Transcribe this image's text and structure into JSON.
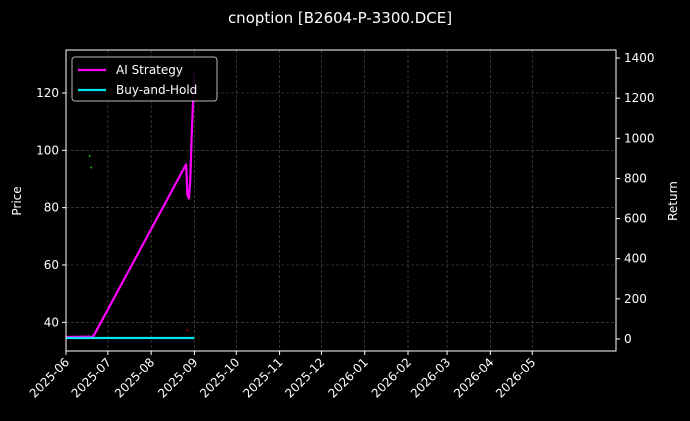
{
  "chart_data": {
    "type": "line",
    "title": "cnoption [B2604-P-3300.DCE]",
    "left_axis": {
      "label": "Price",
      "ylim": [
        30,
        135
      ],
      "ticks": [
        40,
        60,
        80,
        100,
        120
      ]
    },
    "right_axis": {
      "label": "Return",
      "ylim": [
        -60,
        1440
      ],
      "ticks": [
        0,
        200,
        400,
        600,
        800,
        1000,
        1200,
        1400
      ]
    },
    "x_axis": {
      "type": "date",
      "xlim": [
        "2025-06-01",
        "2026-06-30"
      ],
      "tick_labels": [
        "2025-06",
        "2025-07",
        "2025-08",
        "2025-09",
        "2025-10",
        "2025-11",
        "2025-12",
        "2026-01",
        "2026-02",
        "2026-03",
        "2026-04",
        "2026-05"
      ]
    },
    "grid": true,
    "legend_position": "upper-left",
    "series": [
      {
        "name": "AI Strategy",
        "axis": "right",
        "color": "#ff00ff",
        "points": [
          [
            "2025-06-01",
            10
          ],
          [
            "2025-06-20",
            12
          ],
          [
            "2025-06-21",
            18
          ],
          [
            "2025-08-26",
            870
          ],
          [
            "2025-08-27",
            720
          ],
          [
            "2025-08-28",
            700
          ],
          [
            "2025-08-29",
            780
          ],
          [
            "2025-08-30",
            1000
          ],
          [
            "2025-08-31",
            1180
          ],
          [
            "2025-09-01",
            1340
          ]
        ]
      },
      {
        "name": "Buy-and-Hold",
        "axis": "right",
        "color": "#00e5ee",
        "points": [
          [
            "2025-06-01",
            5
          ],
          [
            "2025-09-01",
            5
          ]
        ]
      }
    ],
    "signals": [
      {
        "kind": "buy",
        "color": "#00c000",
        "date": "2025-06-18",
        "price": 98
      },
      {
        "kind": "buy",
        "color": "#00c000",
        "date": "2025-06-19",
        "price": 94
      },
      {
        "kind": "sell",
        "color": "#d00000",
        "date": "2025-08-27",
        "price": 37.2
      }
    ]
  }
}
